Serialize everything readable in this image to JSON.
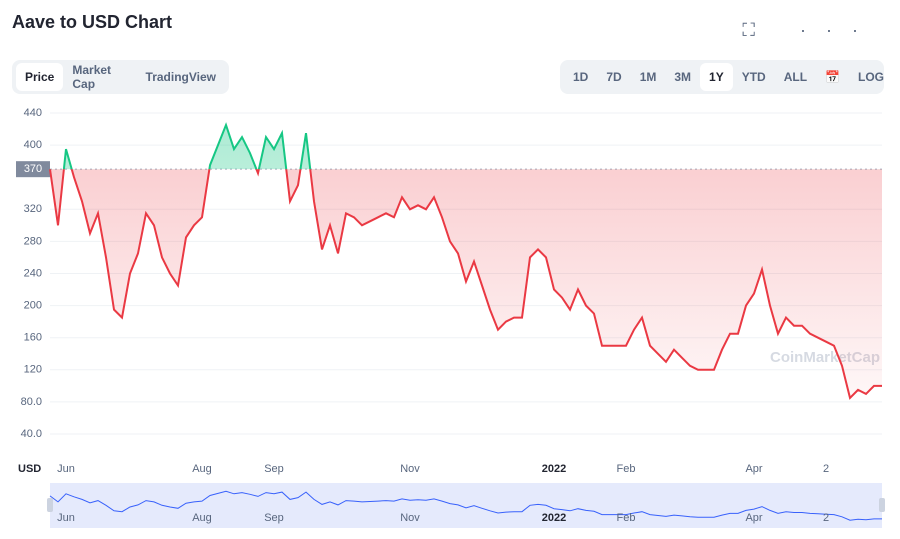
{
  "header": {
    "title": "Aave to USD Chart"
  },
  "tabs": {
    "items": [
      "Price",
      "Market Cap",
      "TradingView"
    ],
    "active": "Price"
  },
  "ranges": {
    "items": [
      "1D",
      "7D",
      "1M",
      "3M",
      "1Y",
      "YTD",
      "ALL"
    ],
    "active": "1Y",
    "log": "LOG"
  },
  "chart_data": {
    "type": "line",
    "currency": "USD",
    "watermark": "CoinMarketCap",
    "reference": {
      "value": 370,
      "label": "370"
    },
    "categories": [
      null,
      null,
      "Jun",
      null,
      null,
      null,
      null,
      null,
      null,
      null,
      null,
      null,
      null,
      null,
      null,
      null,
      null,
      null,
      null,
      "Aug",
      null,
      null,
      null,
      null,
      null,
      null,
      null,
      null,
      "Sep",
      null,
      null,
      null,
      null,
      null,
      null,
      null,
      null,
      null,
      null,
      null,
      null,
      null,
      null,
      null,
      null,
      "Nov",
      null,
      null,
      null,
      null,
      null,
      null,
      null,
      null,
      null,
      null,
      null,
      null,
      null,
      null,
      null,
      null,
      null,
      "2022",
      null,
      null,
      null,
      null,
      null,
      null,
      null,
      null,
      "Feb",
      null,
      null,
      null,
      null,
      null,
      null,
      null,
      null,
      null,
      null,
      null,
      null,
      null,
      null,
      null,
      "Apr",
      null,
      null,
      null,
      null,
      null,
      null,
      null,
      null,
      "2",
      null,
      null,
      null,
      null,
      null,
      null,
      null
    ],
    "values": [
      370,
      300,
      395,
      360,
      330,
      290,
      315,
      260,
      195,
      185,
      240,
      265,
      315,
      300,
      260,
      240,
      225,
      285,
      300,
      310,
      375,
      400,
      425,
      395,
      410,
      390,
      365,
      410,
      395,
      415,
      330,
      350,
      415,
      330,
      270,
      300,
      265,
      315,
      310,
      300,
      305,
      310,
      315,
      310,
      335,
      320,
      325,
      320,
      335,
      310,
      280,
      265,
      230,
      255,
      225,
      195,
      170,
      180,
      185,
      185,
      260,
      270,
      260,
      220,
      210,
      195,
      220,
      200,
      190,
      150,
      150,
      150,
      150,
      170,
      185,
      150,
      140,
      130,
      145,
      135,
      125,
      120,
      120,
      120,
      145,
      165,
      165,
      200,
      215,
      245,
      200,
      165,
      185,
      175,
      175,
      165,
      160,
      155,
      150,
      125,
      85,
      95,
      90,
      100,
      100
    ],
    "up_color": "#16c784",
    "down_color": "#ea3943",
    "navigator_color": "#3861fb",
    "ylim": [
      40,
      440
    ],
    "yticks": [
      440,
      400,
      320,
      280,
      240,
      200,
      160,
      120,
      {
        "value": 80,
        "label": "80.0"
      },
      {
        "value": 40,
        "label": "40.0"
      }
    ],
    "grid": true
  }
}
